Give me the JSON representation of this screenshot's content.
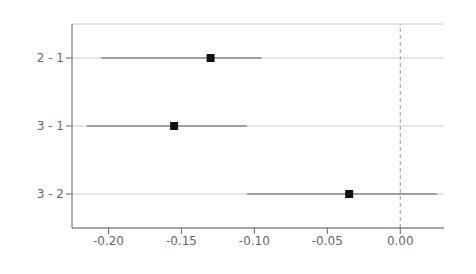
{
  "chart_data": {
    "type": "interval",
    "categories": [
      "2 - 1",
      "3 - 1",
      "3 - 2"
    ],
    "values": [
      -0.13,
      -0.155,
      -0.035
    ],
    "ci_lower": [
      -0.205,
      -0.215,
      -0.105
    ],
    "ci_upper": [
      -0.095,
      -0.105,
      0.025
    ],
    "xlim": [
      -0.225,
      0.03
    ],
    "xticks": [
      {
        "value": -0.2,
        "label": "-0.20"
      },
      -0.15,
      {
        "value": -0.1,
        "label": "-0.10"
      },
      -0.05,
      {
        "value": 0.0,
        "label": "0.00"
      }
    ],
    "reference_x": 0.0,
    "color": "#111111",
    "grid": true
  }
}
